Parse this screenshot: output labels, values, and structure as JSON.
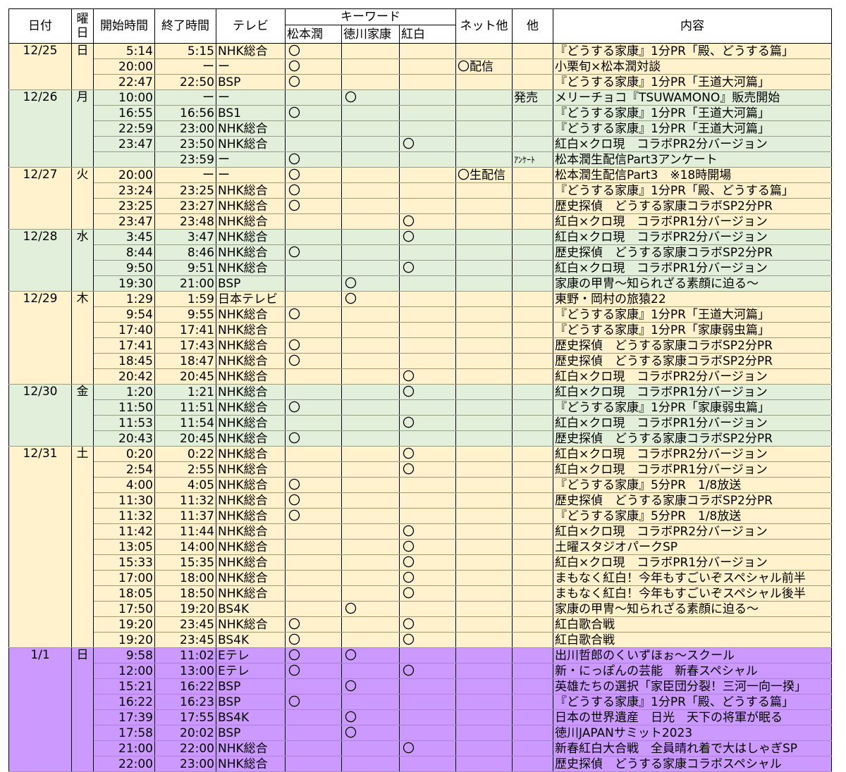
{
  "headers": {
    "date": "日付",
    "dow": "曜日",
    "start": "開始時間",
    "end": "終了時間",
    "tv": "テレビ",
    "keyword": "キーワード",
    "kw1": "松本潤",
    "kw2": "徳川家康",
    "kw3": "紅白",
    "net": "ネット他",
    "other": "他",
    "content": "内容"
  },
  "groups": [
    {
      "date": "12/25",
      "dow": "日",
      "color": "#fff2cc",
      "rows": [
        {
          "start": "5:14",
          "end": "5:15",
          "tv": "NHK総合",
          "k1": "〇",
          "k2": "",
          "k3": "",
          "net": "",
          "other": "",
          "content": "『どうする家康』1分PR「殿、どうする篇」"
        },
        {
          "start": "20:00",
          "end": "ー",
          "tv": "ー",
          "k1": "〇",
          "k2": "",
          "k3": "",
          "net": "〇配信",
          "other": "",
          "content": "小栗旬×松本潤対談"
        },
        {
          "start": "22:47",
          "end": "22:50",
          "tv": "BSP",
          "k1": "〇",
          "k2": "",
          "k3": "",
          "net": "",
          "other": "",
          "content": "『どうする家康』1分PR「王道大河篇」"
        }
      ]
    },
    {
      "date": "12/26",
      "dow": "月",
      "color": "#e2efda",
      "rows": [
        {
          "start": "10:00",
          "end": "ー",
          "tv": "ー",
          "k1": "",
          "k2": "〇",
          "k3": "",
          "net": "",
          "other": "発売",
          "content": "メリーチョコ『TSUWAMONO』販売開始"
        },
        {
          "start": "16:55",
          "end": "16:56",
          "tv": "BS1",
          "k1": "〇",
          "k2": "",
          "k3": "",
          "net": "",
          "other": "",
          "content": "『どうする家康』1分PR「王道大河篇」"
        },
        {
          "start": "22:59",
          "end": "23:00",
          "tv": "NHK総合",
          "k1": "",
          "k2": "",
          "k3": "",
          "net": "",
          "other": "",
          "content": "『どうする家康』1分PR「王道大河篇」"
        },
        {
          "start": "23:47",
          "end": "23:50",
          "tv": "NHK総合",
          "k1": "",
          "k2": "",
          "k3": "〇",
          "net": "",
          "other": "",
          "content": "紅白×クロ現　コラボPR2分バージョン"
        },
        {
          "start": "",
          "end": "23:59",
          "tv": "ー",
          "k1": "〇",
          "k2": "",
          "k3": "",
          "net": "",
          "other": "ｱﾝｹｰﾄ",
          "content": "松本潤生配信Part3アンケート"
        }
      ]
    },
    {
      "date": "12/27",
      "dow": "火",
      "color": "#fff2cc",
      "rows": [
        {
          "start": "20:00",
          "end": "ー",
          "tv": "ー",
          "k1": "〇",
          "k2": "",
          "k3": "",
          "net": "〇生配信",
          "other": "",
          "content": "松本潤生配信Part3　※18時開場"
        },
        {
          "start": "23:24",
          "end": "23:25",
          "tv": "NHK総合",
          "k1": "〇",
          "k2": "",
          "k3": "",
          "net": "",
          "other": "",
          "content": "『どうする家康』1分PR「殿、どうする篇」"
        },
        {
          "start": "23:25",
          "end": "23:27",
          "tv": "NHK総合",
          "k1": "〇",
          "k2": "",
          "k3": "",
          "net": "",
          "other": "",
          "content": "歴史探偵　どうする家康コラボSP2分PR"
        },
        {
          "start": "23:47",
          "end": "23:48",
          "tv": "NHK総合",
          "k1": "",
          "k2": "",
          "k3": "〇",
          "net": "",
          "other": "",
          "content": "紅白×クロ現　コラボPR1分バージョン"
        }
      ]
    },
    {
      "date": "12/28",
      "dow": "水",
      "color": "#e2efda",
      "rows": [
        {
          "start": "3:45",
          "end": "3:47",
          "tv": "NHK総合",
          "k1": "",
          "k2": "",
          "k3": "〇",
          "net": "",
          "other": "",
          "content": "紅白×クロ現　コラボPR2分バージョン"
        },
        {
          "start": "8:44",
          "end": "8:46",
          "tv": "NHK総合",
          "k1": "〇",
          "k2": "",
          "k3": "",
          "net": "",
          "other": "",
          "content": "歴史探偵　どうする家康コラボSP2分PR"
        },
        {
          "start": "9:50",
          "end": "9:51",
          "tv": "NHK総合",
          "k1": "",
          "k2": "",
          "k3": "〇",
          "net": "",
          "other": "",
          "content": "紅白×クロ現　コラボPR1分バージョン"
        },
        {
          "start": "19:30",
          "end": "21:00",
          "tv": "BSP",
          "k1": "",
          "k2": "〇",
          "k3": "",
          "net": "",
          "other": "",
          "content": "家康の甲冑～知られざる素顔に迫る～"
        }
      ]
    },
    {
      "date": "12/29",
      "dow": "木",
      "color": "#fff2cc",
      "rows": [
        {
          "start": "1:29",
          "end": "1:59",
          "tv": "日本テレビ",
          "k1": "",
          "k2": "〇",
          "k3": "",
          "net": "",
          "other": "",
          "content": "東野・岡村の旅猿22"
        },
        {
          "start": "9:54",
          "end": "9:55",
          "tv": "NHK総合",
          "k1": "〇",
          "k2": "",
          "k3": "",
          "net": "",
          "other": "",
          "content": "『どうする家康』1分PR「王道大河篇」"
        },
        {
          "start": "17:40",
          "end": "17:41",
          "tv": "NHK総合",
          "k1": "",
          "k2": "",
          "k3": "",
          "net": "",
          "other": "",
          "content": "『どうする家康』1分PR「家康弱虫篇」"
        },
        {
          "start": "17:41",
          "end": "17:43",
          "tv": "NHK総合",
          "k1": "〇",
          "k2": "",
          "k3": "",
          "net": "",
          "other": "",
          "content": "歴史探偵　どうする家康コラボSP2分PR"
        },
        {
          "start": "18:45",
          "end": "18:47",
          "tv": "NHK総合",
          "k1": "〇",
          "k2": "",
          "k3": "",
          "net": "",
          "other": "",
          "content": "歴史探偵　どうする家康コラボSP2分PR"
        },
        {
          "start": "20:42",
          "end": "20:45",
          "tv": "NHK総合",
          "k1": "",
          "k2": "",
          "k3": "〇",
          "net": "",
          "other": "",
          "content": "紅白×クロ現　コラボPR2分バージョン"
        }
      ]
    },
    {
      "date": "12/30",
      "dow": "金",
      "color": "#e2efda",
      "rows": [
        {
          "start": "1:20",
          "end": "1:21",
          "tv": "NHK総合",
          "k1": "",
          "k2": "",
          "k3": "〇",
          "net": "",
          "other": "",
          "content": "紅白×クロ現　コラボPR1分バージョン"
        },
        {
          "start": "11:50",
          "end": "11:51",
          "tv": "NHK総合",
          "k1": "〇",
          "k2": "",
          "k3": "",
          "net": "",
          "other": "",
          "content": "『どうする家康』1分PR「家康弱虫篇」"
        },
        {
          "start": "11:53",
          "end": "11:54",
          "tv": "NHK総合",
          "k1": "",
          "k2": "",
          "k3": "〇",
          "net": "",
          "other": "",
          "content": "紅白×クロ現　コラボPR1分バージョン"
        },
        {
          "start": "20:43",
          "end": "20:45",
          "tv": "NHK総合",
          "k1": "〇",
          "k2": "",
          "k3": "",
          "net": "",
          "other": "",
          "content": "歴史探偵　どうする家康コラボSP2分PR"
        }
      ]
    },
    {
      "date": "12/31",
      "dow": "土",
      "color": "#fff2cc",
      "rows": [
        {
          "start": "0:20",
          "end": "0:22",
          "tv": "NHK総合",
          "k1": "",
          "k2": "",
          "k3": "〇",
          "net": "",
          "other": "",
          "content": "紅白×クロ現　コラボPR2分バージョン"
        },
        {
          "start": "2:54",
          "end": "2:55",
          "tv": "NHK総合",
          "k1": "",
          "k2": "",
          "k3": "〇",
          "net": "",
          "other": "",
          "content": "紅白×クロ現　コラボPR1分バージョン"
        },
        {
          "start": "4:00",
          "end": "4:05",
          "tv": "NHK総合",
          "k1": "〇",
          "k2": "",
          "k3": "",
          "net": "",
          "other": "",
          "content": "『どうする家康』5分PR　1/8放送"
        },
        {
          "start": "11:30",
          "end": "11:32",
          "tv": "NHK総合",
          "k1": "〇",
          "k2": "",
          "k3": "",
          "net": "",
          "other": "",
          "content": "歴史探偵　どうする家康コラボSP2分PR"
        },
        {
          "start": "11:32",
          "end": "11:37",
          "tv": "NHK総合",
          "k1": "〇",
          "k2": "",
          "k3": "",
          "net": "",
          "other": "",
          "content": "『どうする家康』5分PR　1/8放送"
        },
        {
          "start": "11:42",
          "end": "11:44",
          "tv": "NHK総合",
          "k1": "",
          "k2": "",
          "k3": "〇",
          "net": "",
          "other": "",
          "content": "紅白×クロ現　コラボPR2分バージョン"
        },
        {
          "start": "13:05",
          "end": "14:00",
          "tv": "NHK総合",
          "k1": "",
          "k2": "",
          "k3": "〇",
          "net": "",
          "other": "",
          "content": "土曜スタジオパークSP"
        },
        {
          "start": "15:33",
          "end": "15:35",
          "tv": "NHK総合",
          "k1": "",
          "k2": "",
          "k3": "〇",
          "net": "",
          "other": "",
          "content": "紅白×クロ現　コラボPR1分バージョン"
        },
        {
          "start": "17:00",
          "end": "18:00",
          "tv": "NHK総合",
          "k1": "",
          "k2": "",
          "k3": "〇",
          "net": "",
          "other": "",
          "content": "まもなく紅白！今年もすごいぞスペシャル前半"
        },
        {
          "start": "18:05",
          "end": "18:50",
          "tv": "NHK総合",
          "k1": "",
          "k2": "",
          "k3": "〇",
          "net": "",
          "other": "",
          "content": "まもなく紅白！今年もすごいぞスペシャル後半"
        },
        {
          "start": "17:50",
          "end": "19:20",
          "tv": "BS4K",
          "k1": "",
          "k2": "〇",
          "k3": "",
          "net": "",
          "other": "",
          "content": "家康の甲冑～知られざる素顔に迫る～"
        },
        {
          "start": "19:20",
          "end": "23:45",
          "tv": "NHK総合",
          "k1": "〇",
          "k2": "",
          "k3": "〇",
          "net": "",
          "other": "",
          "content": "紅白歌合戦"
        },
        {
          "start": "19:20",
          "end": "23:45",
          "tv": "BS4K",
          "k1": "〇",
          "k2": "",
          "k3": "〇",
          "net": "",
          "other": "",
          "content": "紅白歌合戦"
        }
      ]
    },
    {
      "date": "1/1",
      "dow": "日",
      "color": "#cc99ff",
      "rows": [
        {
          "start": "9:58",
          "end": "11:02",
          "tv": "Eテレ",
          "k1": "〇",
          "k2": "〇",
          "k3": "",
          "net": "",
          "other": "",
          "content": "出川哲郎のくいずほぉ～スクール"
        },
        {
          "start": "12:00",
          "end": "13:00",
          "tv": "Eテレ",
          "k1": "〇",
          "k2": "",
          "k3": "〇",
          "net": "",
          "other": "",
          "content": "新・にっぽんの芸能　新春スペシャル"
        },
        {
          "start": "15:21",
          "end": "16:22",
          "tv": "BSP",
          "k1": "",
          "k2": "〇",
          "k3": "",
          "net": "",
          "other": "",
          "content": "英雄たちの選択「家臣団分裂！三河一向一揆」"
        },
        {
          "start": "16:22",
          "end": "16:23",
          "tv": "BSP",
          "k1": "〇",
          "k2": "",
          "k3": "",
          "net": "",
          "other": "",
          "content": "『どうする家康』1分PR「殿、どうする篇」"
        },
        {
          "start": "17:39",
          "end": "17:55",
          "tv": "BS4K",
          "k1": "",
          "k2": "〇",
          "k3": "",
          "net": "",
          "other": "",
          "content": "日本の世界遺産　日光　天下の将軍が眠る"
        },
        {
          "start": "17:58",
          "end": "20:02",
          "tv": "BSP",
          "k1": "",
          "k2": "〇",
          "k3": "",
          "net": "",
          "other": "",
          "content": "徳川JAPANサミット2023"
        },
        {
          "start": "21:00",
          "end": "22:00",
          "tv": "NHK総合",
          "k1": "",
          "k2": "",
          "k3": "〇",
          "net": "",
          "other": "",
          "content": "新春紅白大合戦　全員晴れ着で大はしゃぎSP"
        },
        {
          "start": "22:00",
          "end": "23:00",
          "tv": "NHK総合",
          "k1": "",
          "k2": "",
          "k3": "",
          "net": "",
          "other": "",
          "content": "歴史探偵　どうする家康コラボスペシャル"
        }
      ]
    }
  ]
}
